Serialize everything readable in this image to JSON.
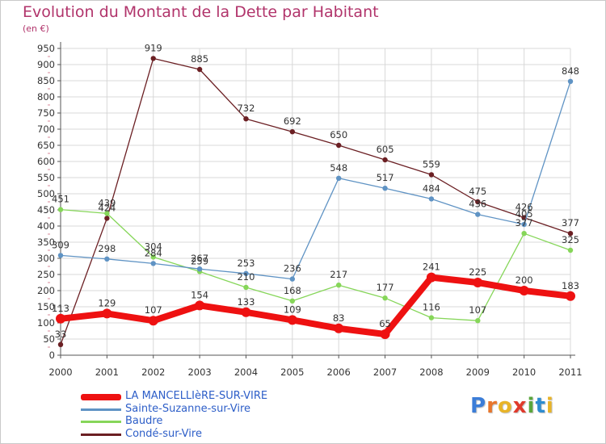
{
  "header": {
    "title": "Evolution du Montant de la Dette par Habitant",
    "subtitle": "(en €)"
  },
  "logo": {
    "text": "Proxiti",
    "letters": [
      "P",
      "r",
      "o",
      "x",
      "i",
      "t",
      "i"
    ],
    "colors": [
      "#3b7dd8",
      "#e8762c",
      "#e8b428",
      "#e03a2c",
      "#5aa63c",
      "#2e8cd0",
      "#e8b428"
    ]
  },
  "chart_data": {
    "type": "line",
    "title": "Evolution du Montant de la Dette par Habitant",
    "subtitle": "(en €)",
    "xlabel": "",
    "ylabel": "",
    "x": [
      "2000",
      "2001",
      "2002",
      "2003",
      "2004",
      "2005",
      "2006",
      "2007",
      "2008",
      "2009",
      "2010",
      "2011"
    ],
    "ylim": [
      0,
      950
    ],
    "yticks": [
      0,
      50,
      100,
      150,
      200,
      250,
      300,
      350,
      400,
      450,
      500,
      550,
      600,
      650,
      700,
      750,
      800,
      850,
      900,
      950
    ],
    "grid": true,
    "legend_position": "bottom-left",
    "series": [
      {
        "name": "Condé-sur-Vire",
        "color": "#6b1f23",
        "values": [
          33,
          424,
          919,
          885,
          732,
          692,
          650,
          605,
          559,
          475,
          426,
          377
        ]
      },
      {
        "name": "Baudre",
        "color": "#86d659",
        "values": [
          451,
          439,
          304,
          259,
          210,
          168,
          217,
          177,
          116,
          107,
          377,
          325
        ]
      },
      {
        "name": "Sainte-Suzanne-sur-Vire",
        "color": "#5f93c4",
        "values": [
          309,
          298,
          284,
          267,
          253,
          236,
          548,
          517,
          484,
          436,
          405,
          848
        ]
      },
      {
        "name": "LA MANCELLIèRE-SUR-VIRE",
        "color": "#ee1111",
        "values": [
          113,
          129,
          107,
          154,
          133,
          109,
          83,
          65,
          241,
          225,
          200,
          183
        ]
      }
    ],
    "legend_order": [
      "LA MANCELLIèRE-SUR-VIRE",
      "Sainte-Suzanne-sur-Vire",
      "Baudre",
      "Condé-sur-Vire"
    ]
  }
}
